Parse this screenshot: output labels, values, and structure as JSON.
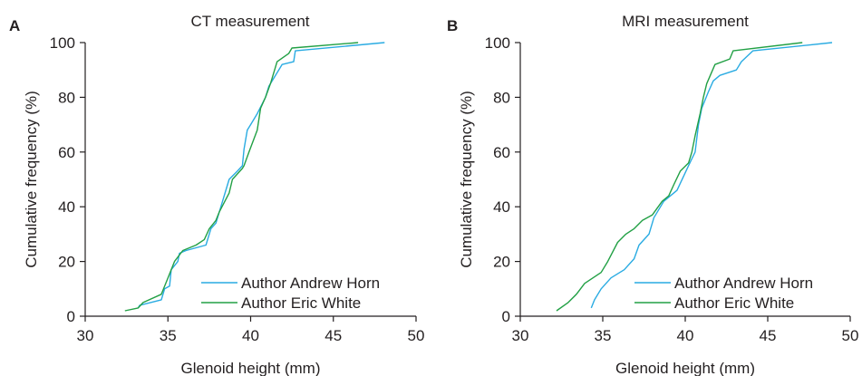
{
  "chart_data": [
    {
      "type": "line",
      "panel_label": "A",
      "title": "CT measurement",
      "xlabel": "Glenoid height (mm)",
      "ylabel": "Cumulative frequency (%)",
      "xlim": [
        30,
        50
      ],
      "ylim": [
        0,
        100
      ],
      "xticks": [
        30,
        35,
        40,
        45,
        50
      ],
      "yticks": [
        0,
        20,
        40,
        60,
        80,
        100
      ],
      "grid": false,
      "legend_position": "bottom-right",
      "series": [
        {
          "name": "Author Andrew Horn",
          "color": "#29abe2",
          "x": [
            33.2,
            33.3,
            34.6,
            34.8,
            35.1,
            35.2,
            35.6,
            35.7,
            36.1,
            37.3,
            37.6,
            37.9,
            38.3,
            38.7,
            39.2,
            39.5,
            39.6,
            39.8,
            40.0,
            40.4,
            40.9,
            41.1,
            41.9,
            42.6,
            42.7,
            48.1
          ],
          "y": [
            3,
            4,
            6,
            10,
            11,
            17,
            20,
            23,
            24,
            26,
            32,
            34,
            42,
            50,
            53,
            55,
            61,
            68,
            70,
            74,
            80,
            84,
            92,
            93,
            97,
            100
          ]
        },
        {
          "name": "Author Eric White",
          "color": "#22a045",
          "x": [
            32.4,
            33.2,
            33.5,
            34.6,
            35.0,
            35.4,
            35.9,
            36.7,
            37.2,
            37.5,
            37.9,
            38.1,
            38.7,
            38.9,
            39.5,
            39.6,
            39.9,
            40.4,
            40.6,
            40.9,
            41.2,
            41.6,
            42.3,
            42.5,
            46.5
          ],
          "y": [
            2,
            3,
            5,
            8,
            14,
            20,
            24,
            26,
            28,
            32,
            35,
            38,
            45,
            50,
            54,
            55,
            60,
            68,
            76,
            80,
            85,
            93,
            96,
            98,
            100
          ]
        }
      ]
    },
    {
      "type": "line",
      "panel_label": "B",
      "title": "MRI measurement",
      "xlabel": "Glenoid height (mm)",
      "ylabel": "Cumulative frequency (%)",
      "xlim": [
        30,
        50
      ],
      "ylim": [
        0,
        100
      ],
      "xticks": [
        30,
        35,
        40,
        45,
        50
      ],
      "yticks": [
        0,
        20,
        40,
        60,
        80,
        100
      ],
      "grid": false,
      "legend_position": "bottom-right",
      "series": [
        {
          "name": "Author Andrew Horn",
          "color": "#29abe2",
          "x": [
            34.3,
            34.5,
            34.9,
            35.5,
            36.3,
            36.9,
            37.2,
            37.8,
            38.1,
            38.7,
            39.5,
            40.2,
            40.6,
            40.8,
            41.0,
            41.4,
            41.7,
            42.1,
            43.1,
            43.4,
            44.1,
            48.9
          ],
          "y": [
            3,
            6,
            10,
            14,
            17,
            21,
            26,
            30,
            36,
            42,
            46,
            55,
            60,
            70,
            76,
            82,
            86,
            88,
            90,
            93,
            97,
            100
          ]
        },
        {
          "name": "Author Eric White",
          "color": "#22a045",
          "x": [
            32.2,
            32.9,
            33.4,
            33.9,
            34.9,
            35.3,
            35.9,
            36.4,
            36.9,
            37.4,
            38.0,
            38.6,
            39.0,
            39.3,
            39.7,
            40.2,
            40.4,
            40.6,
            40.9,
            41.1,
            41.3,
            41.8,
            42.7,
            42.9,
            47.1
          ],
          "y": [
            2,
            5,
            8,
            12,
            16,
            20,
            27,
            30,
            32,
            35,
            37,
            42,
            44,
            48,
            53,
            56,
            60,
            66,
            74,
            80,
            85,
            92,
            94,
            97,
            100
          ]
        }
      ]
    }
  ]
}
